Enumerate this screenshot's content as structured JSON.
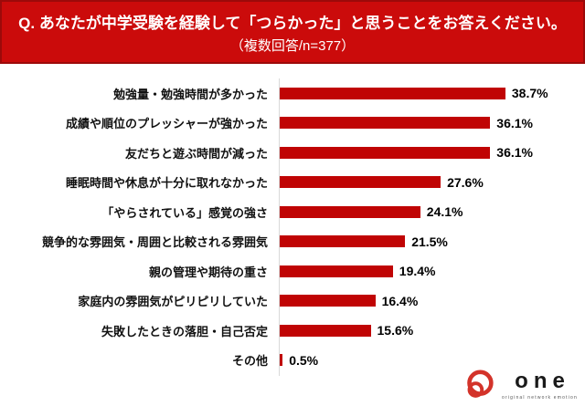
{
  "header": {
    "title": "Q. あなたが中学受験を経験して「つらかった」と思うことをお答えください。",
    "subtitle": "（複数回答/n=377）",
    "bg_color": "#cb0b0b",
    "border_color": "#9c0a0a",
    "text_color": "#ffffff"
  },
  "chart_data": {
    "type": "bar",
    "orientation": "horizontal",
    "title": "",
    "xlabel": "",
    "ylabel": "",
    "grid": false,
    "legend": false,
    "xlim": [
      0,
      40
    ],
    "categories": [
      "勉強量・勉強時間が多かった",
      "成績や順位のプレッシャーが強かった",
      "友だちと遊ぶ時間が減った",
      "睡眠時間や休息が十分に取れなかった",
      "「やらされている」感覚の強さ",
      "競争的な雰囲気・周囲と比較される雰囲気",
      "親の管理や期待の重さ",
      "家庭内の雰囲気がピリピリしていた",
      "失敗したときの落胆・自己否定",
      "その他"
    ],
    "values": [
      38.7,
      36.1,
      36.1,
      27.6,
      24.1,
      21.5,
      19.4,
      16.4,
      15.6,
      0.5
    ],
    "value_labels": [
      "38.7%",
      "36.1%",
      "36.1%",
      "27.6%",
      "24.1%",
      "21.5%",
      "19.4%",
      "16.4%",
      "15.6%",
      "0.5%"
    ],
    "value_suffix": "%",
    "bar_color": "#c00404",
    "axis_color": "#d9d9d9",
    "value_label_position": "right-of-bar"
  },
  "logo": {
    "text": "one",
    "tagline": "original network emotion",
    "icon": "spiral-circles-icon",
    "icon_color": "#d3332a"
  }
}
